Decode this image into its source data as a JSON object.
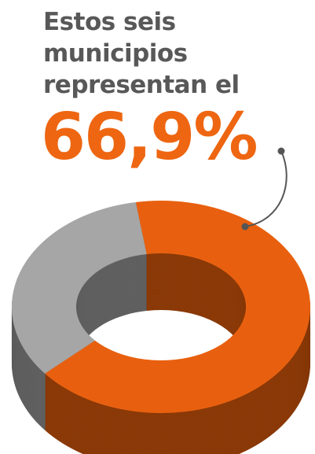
{
  "chart_data": {
    "type": "pie",
    "title": [
      "Estos seis",
      "municipios",
      "representan el"
    ],
    "categories": [
      null,
      null
    ],
    "values": [
      66.9,
      33.1
    ],
    "value_labels": [
      "66,9%",
      null
    ],
    "colors": [
      "#e8600f",
      "#a6a6a6"
    ],
    "side_colors": [
      "#8c3a08",
      "#616161"
    ]
  }
}
